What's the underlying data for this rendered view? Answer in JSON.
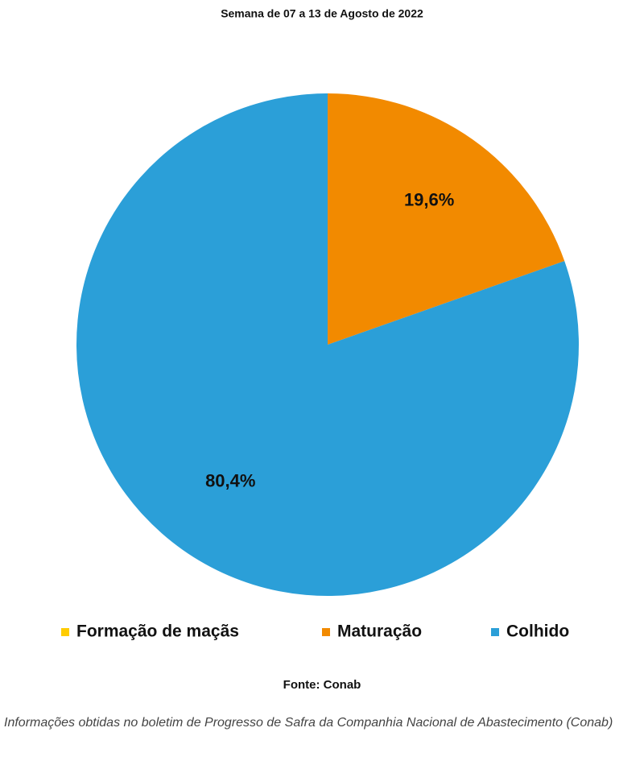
{
  "chart_data": {
    "type": "pie",
    "title": "Semana de 07 a 13 de Agosto de 2022",
    "categories": [
      "Formação de maçãs",
      "Maturação",
      "Colhido"
    ],
    "values": [
      0,
      19.6,
      80.4
    ],
    "value_labels": [
      null,
      "19,6%",
      "80,4%"
    ],
    "colors": [
      "#ffcc00",
      "#f28a00",
      "#2b9fd8"
    ],
    "legend": "bottom"
  },
  "source": "Fonte: Conab",
  "note": "Informações obtidas no boletim de Progresso de Safra da Companhia Nacional de Abastecimento (Conab)"
}
